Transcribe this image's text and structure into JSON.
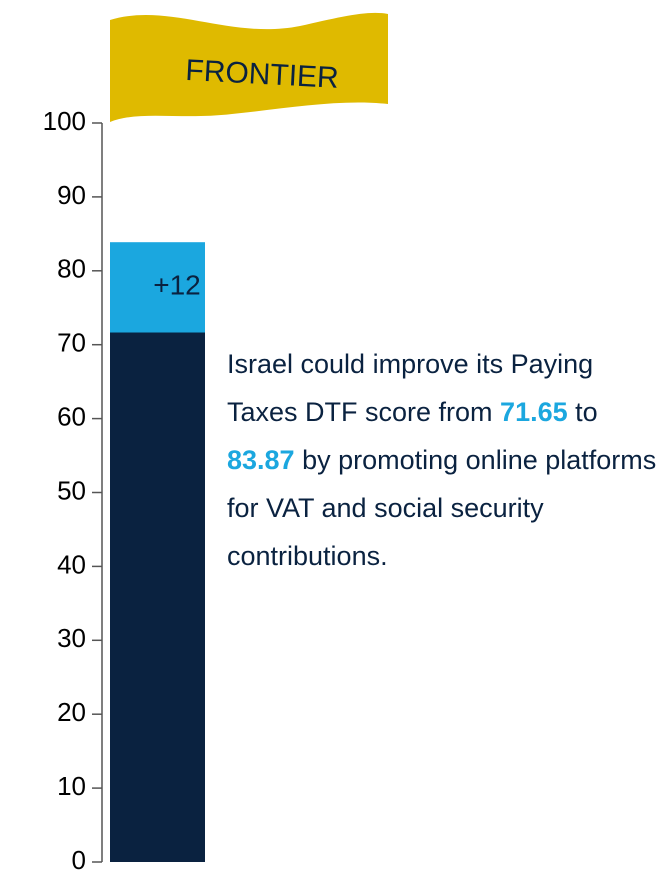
{
  "chart_data": {
    "type": "stacked_bar",
    "flag_label": "FRONTIER",
    "categories": [
      null
    ],
    "series": [
      {
        "color": "#0a2240",
        "values": [
          71.65
        ]
      },
      {
        "color": "#1ba7df",
        "values": [
          12.22
        ],
        "value_labels": [
          "+12"
        ]
      }
    ],
    "ylim": [
      0,
      100
    ],
    "yticks": [
      0,
      10,
      20,
      30,
      40,
      50,
      60,
      70,
      80,
      90,
      100
    ],
    "annotation": [
      "Israel could improve its Paying Taxes DTF score from ",
      "71.65",
      " to ",
      "83.87",
      " by promoting online platforms for VAT and social security contributions."
    ]
  }
}
